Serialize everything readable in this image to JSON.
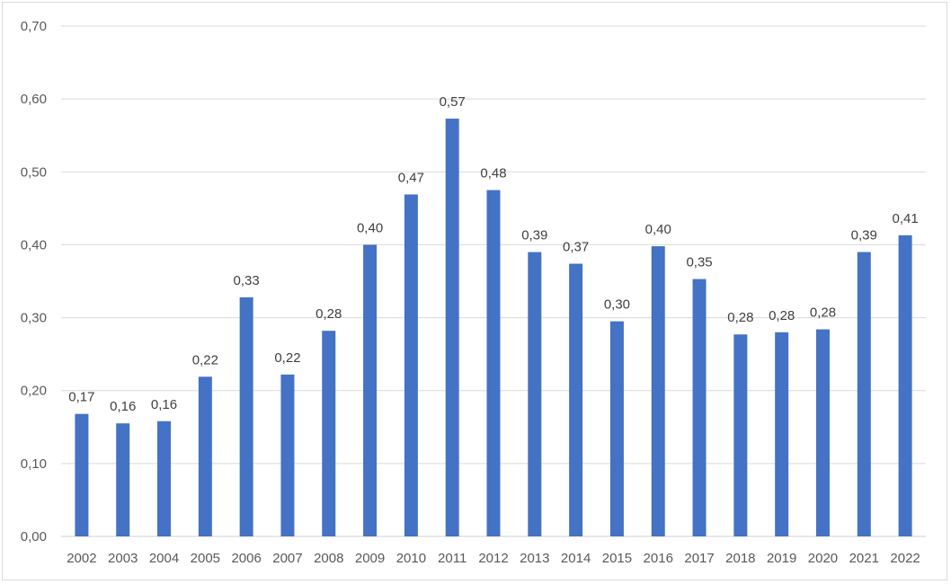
{
  "chart_data": {
    "type": "bar",
    "categories": [
      "2002",
      "2003",
      "2004",
      "2005",
      "2006",
      "2007",
      "2008",
      "2009",
      "2010",
      "2011",
      "2012",
      "2013",
      "2014",
      "2015",
      "2016",
      "2017",
      "2018",
      "2019",
      "2020",
      "2021",
      "2022"
    ],
    "values": [
      0.168,
      0.155,
      0.158,
      0.219,
      0.328,
      0.222,
      0.282,
      0.4,
      0.469,
      0.573,
      0.475,
      0.39,
      0.374,
      0.295,
      0.398,
      0.353,
      0.277,
      0.28,
      0.284,
      0.39,
      0.413
    ],
    "data_labels": [
      "0,17",
      "0,16",
      "0,16",
      "0,22",
      "0,33",
      "0,22",
      "0,28",
      "0,40",
      "0,47",
      "0,57",
      "0,48",
      "0,39",
      "0,37",
      "0,30",
      "0,40",
      "0,35",
      "0,28",
      "0,28",
      "0,28",
      "0,39",
      "0,41"
    ],
    "y_ticks": [
      0,
      0.1,
      0.2,
      0.3,
      0.4,
      0.5,
      0.6,
      0.7
    ],
    "y_tick_labels": [
      "0,00",
      "0,10",
      "0,20",
      "0,30",
      "0,40",
      "0,50",
      "0,60",
      "0,70"
    ],
    "ylim": [
      0,
      0.7
    ],
    "title": "",
    "xlabel": "",
    "ylabel": "",
    "grid": true,
    "legend": "none",
    "bar_color": "#4472c4"
  }
}
